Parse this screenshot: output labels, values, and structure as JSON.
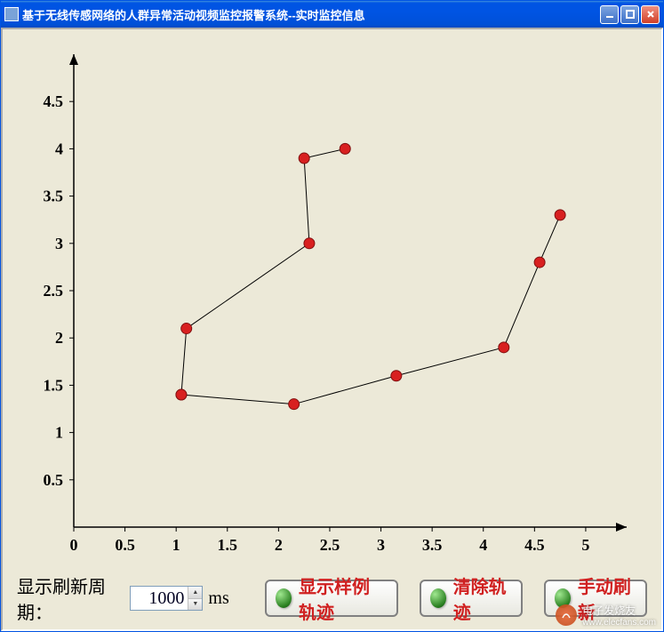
{
  "window": {
    "title": "基于无线传感网络的人群异常活动视频监控报警系统--实时监控信息"
  },
  "chart": {
    "type": "line-scatter",
    "background_color": "#ece9d8",
    "axis_color": "#000000",
    "line_color": "#000000",
    "line_width": 1,
    "marker_fill": "#d82020",
    "marker_stroke": "#801010",
    "marker_radius": 6,
    "x": {
      "min": 0,
      "max": 5.4,
      "ticks": [
        0,
        0.5,
        1,
        1.5,
        2,
        2.5,
        3,
        3.5,
        4,
        4.5,
        5
      ],
      "tick_labels": [
        "0",
        "0.5",
        "1",
        "1.5",
        "2",
        "2.5",
        "3",
        "3.5",
        "4",
        "4.5",
        "5"
      ]
    },
    "y": {
      "min": 0,
      "max": 5.0,
      "ticks": [
        0.5,
        1,
        1.5,
        2,
        2.5,
        3,
        3.5,
        4,
        4.5
      ],
      "tick_labels": [
        "0.5",
        "1",
        "1.5",
        "2",
        "2.5",
        "3",
        "3.5",
        "4",
        "4.5"
      ]
    },
    "label_fontsize": 18,
    "label_fontweight": "bold",
    "series1": {
      "points": [
        {
          "x": 1.05,
          "y": 1.4
        },
        {
          "x": 1.1,
          "y": 2.1
        },
        {
          "x": 2.3,
          "y": 3.0
        },
        {
          "x": 2.25,
          "y": 3.9
        },
        {
          "x": 2.65,
          "y": 4.0
        }
      ]
    },
    "series2": {
      "points": [
        {
          "x": 1.05,
          "y": 1.4
        },
        {
          "x": 2.15,
          "y": 1.3
        },
        {
          "x": 3.15,
          "y": 1.6
        },
        {
          "x": 4.2,
          "y": 1.9
        },
        {
          "x": 4.55,
          "y": 2.8
        },
        {
          "x": 4.75,
          "y": 3.3
        }
      ]
    }
  },
  "controls": {
    "refresh_period_label": "显示刷新周期：",
    "refresh_period_value": "1000",
    "refresh_period_unit": "ms",
    "btn_show_sample": {
      "text": "显示样例轨迹",
      "color": "#d02020"
    },
    "btn_clear": {
      "text": "清除轨迹",
      "color": "#d02020"
    },
    "btn_manual_refresh": {
      "text": "手动刷新",
      "color": "#d02020"
    }
  },
  "watermark": {
    "text": "电子发烧友",
    "url": "www.elecfans.com"
  }
}
